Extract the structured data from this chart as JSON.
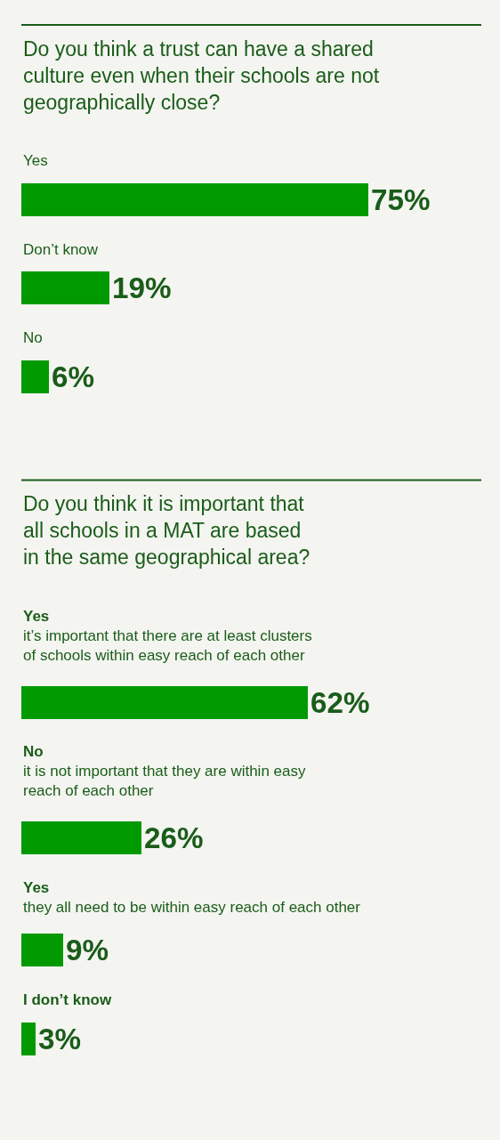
{
  "chart_data": [
    {
      "type": "bar",
      "orientation": "horizontal",
      "title": "Do you think a trust can have a shared\nculture even when their schools are not\ngeographically close?",
      "categories": [
        "Yes",
        "Don’t know",
        "No"
      ],
      "values": [
        75,
        19,
        6
      ],
      "color": "#009a00",
      "value_labels": [
        "75%",
        "19%",
        "6%"
      ]
    },
    {
      "type": "bar",
      "orientation": "horizontal",
      "title": "Do you think it is important that\nall schools in a MAT are based\nin the same geographical area?",
      "categories": [
        "Yes\nit’s important that there are at least clusters\nof schools within easy reach of each other",
        "No\nit is not important that they are within easy\nreach of each other",
        "Yes\nthey all need to be within easy reach of each other",
        "I don’t know"
      ],
      "values": [
        62,
        26,
        9,
        3
      ],
      "color": "#009a00",
      "value_labels": [
        "62%",
        "26%",
        "9%",
        "3%"
      ]
    }
  ]
}
